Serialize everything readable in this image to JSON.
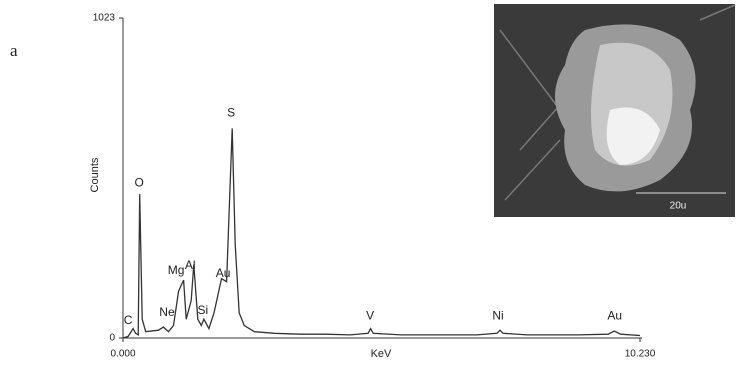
{
  "chart_data": {
    "type": "line",
    "panel_label": "a",
    "y_label": "Counts",
    "x_label": "KeV",
    "x": [
      0.0,
      0.1,
      0.2,
      0.25,
      0.3,
      0.33,
      0.38,
      0.45,
      0.7,
      0.8,
      0.9,
      1.0,
      1.1,
      1.2,
      1.25,
      1.35,
      1.4,
      1.48,
      1.55,
      1.6,
      1.7,
      1.8,
      1.95,
      2.05,
      2.1,
      2.16,
      2.22,
      2.3,
      2.4,
      2.6,
      3.0,
      3.5,
      4.0,
      4.5,
      4.85,
      4.9,
      4.95,
      5.5,
      6.0,
      6.5,
      7.0,
      7.4,
      7.46,
      7.52,
      8.0,
      8.5,
      9.0,
      9.6,
      9.72,
      9.85,
      10.23
    ],
    "values": [
      0,
      5,
      30,
      15,
      10,
      460,
      60,
      20,
      25,
      35,
      20,
      40,
      150,
      185,
      60,
      120,
      235,
      60,
      40,
      60,
      30,
      80,
      190,
      180,
      400,
      670,
      300,
      80,
      40,
      20,
      15,
      12,
      12,
      10,
      15,
      30,
      15,
      10,
      10,
      10,
      10,
      15,
      25,
      15,
      10,
      10,
      10,
      12,
      22,
      12,
      8
    ],
    "color": "#333333",
    "xlim": [
      0,
      10.23
    ],
    "ylim": [
      0,
      1023
    ],
    "xticks": [
      {
        "value": 0,
        "label": "0.000"
      },
      {
        "value": 10.23,
        "label": "10.230"
      }
    ],
    "yticks": [
      0,
      1023
    ],
    "annotations": [
      {
        "text": "C",
        "x": 0.1,
        "y": 55
      },
      {
        "text": "O",
        "x": 0.32,
        "y": 494
      },
      {
        "text": "Ne",
        "x": 0.87,
        "y": 80
      },
      {
        "text": "Mg",
        "x": 1.05,
        "y": 215
      },
      {
        "text": "Al",
        "x": 1.33,
        "y": 231
      },
      {
        "text": "Si",
        "x": 1.58,
        "y": 87
      },
      {
        "text": "Au",
        "x": 1.98,
        "y": 205
      },
      {
        "text": "S",
        "x": 2.14,
        "y": 718
      },
      {
        "text": "V",
        "x": 4.89,
        "y": 70
      },
      {
        "text": "Ni",
        "x": 7.42,
        "y": 70
      },
      {
        "text": "Au",
        "x": 9.73,
        "y": 70
      }
    ],
    "inset": {
      "scale_label": "20u"
    }
  }
}
